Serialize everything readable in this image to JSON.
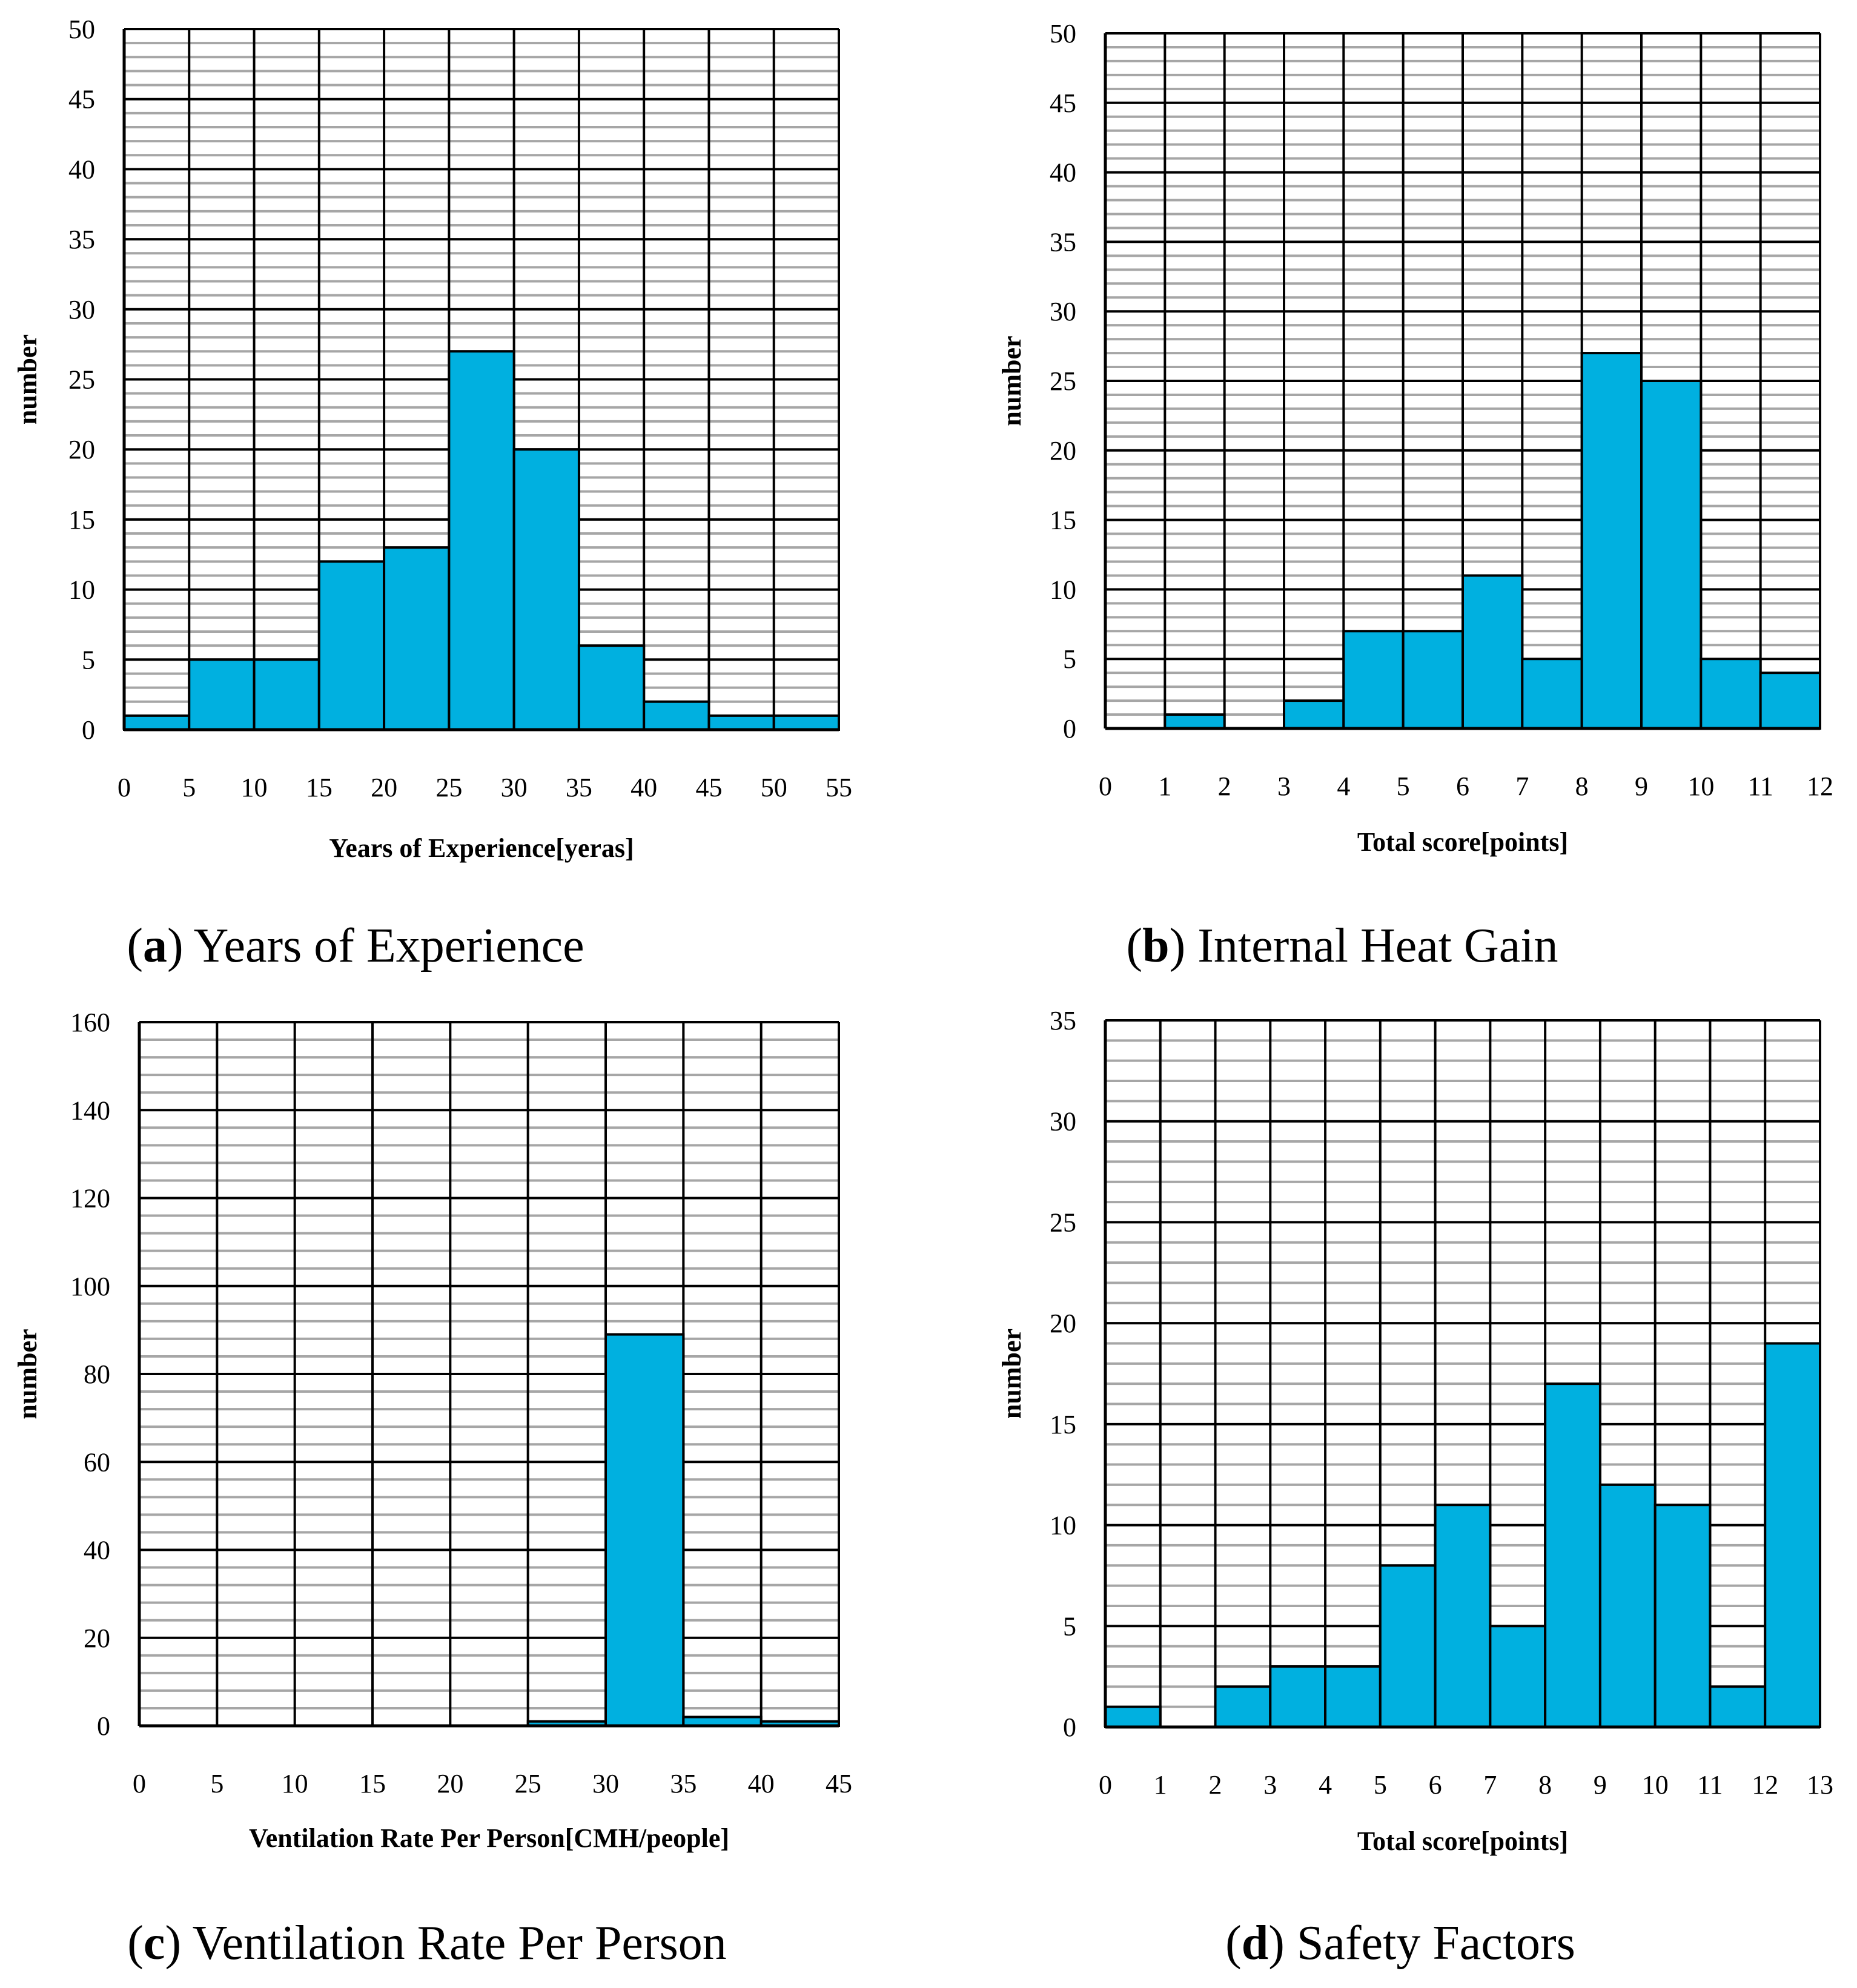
{
  "figure": {
    "captions": [
      {
        "letter": "a",
        "text": "Years of Experience"
      },
      {
        "letter": "b",
        "text": "Internal Heat Gain"
      },
      {
        "letter": "c",
        "text": "Ventilation Rate Per Person"
      },
      {
        "letter": "d",
        "text": "Safety Factors"
      }
    ]
  },
  "colors": {
    "bar": "#00b0e0",
    "major_grid": "#000000",
    "minor_grid": "#a6a6a6"
  },
  "chart_data": [
    {
      "type": "bar",
      "id": "a",
      "title": "Years of Experience",
      "xlabel": "Years of Experience[yeras]",
      "ylabel": "number",
      "bin_edges": [
        0,
        5,
        10,
        15,
        20,
        25,
        30,
        35,
        40,
        45,
        50,
        55
      ],
      "values": [
        1,
        5,
        5,
        12,
        13,
        27,
        20,
        6,
        2,
        1,
        1
      ],
      "ylim": [
        0,
        50
      ],
      "y_major_step": 5,
      "y_minor_step": 1,
      "grid": true
    },
    {
      "type": "bar",
      "id": "b",
      "title": "Internal Heat Gain",
      "xlabel": "Total score[points]",
      "ylabel": "number",
      "bin_edges": [
        0,
        1,
        2,
        3,
        4,
        5,
        6,
        7,
        8,
        9,
        10,
        11,
        12
      ],
      "values": [
        0,
        1,
        0,
        2,
        7,
        7,
        11,
        5,
        27,
        25,
        5,
        4
      ],
      "ylim": [
        0,
        50
      ],
      "y_major_step": 5,
      "y_minor_step": 1,
      "grid": true
    },
    {
      "type": "bar",
      "id": "c",
      "title": "Ventilation Rate Per Person",
      "xlabel": "Ventilation Rate Per Person[CMH/people]",
      "ylabel": "number",
      "bin_edges": [
        0,
        5,
        10,
        15,
        20,
        25,
        30,
        35,
        40,
        45
      ],
      "values": [
        0,
        0,
        0,
        0,
        0,
        1,
        89,
        2,
        1
      ],
      "ylim": [
        0,
        160
      ],
      "y_major_step": 20,
      "y_minor_step": 4,
      "grid": true
    },
    {
      "type": "bar",
      "id": "d",
      "title": "Safety Factors",
      "xlabel": "Total score[points]",
      "ylabel": "number",
      "bin_edges": [
        0,
        1,
        2,
        3,
        4,
        5,
        6,
        7,
        8,
        9,
        10,
        11,
        12,
        13
      ],
      "values": [
        1,
        0,
        2,
        3,
        3,
        8,
        11,
        5,
        17,
        12,
        11,
        2,
        19
      ],
      "ylim": [
        0,
        35
      ],
      "y_major_step": 5,
      "y_minor_step": 1,
      "grid": true
    }
  ]
}
